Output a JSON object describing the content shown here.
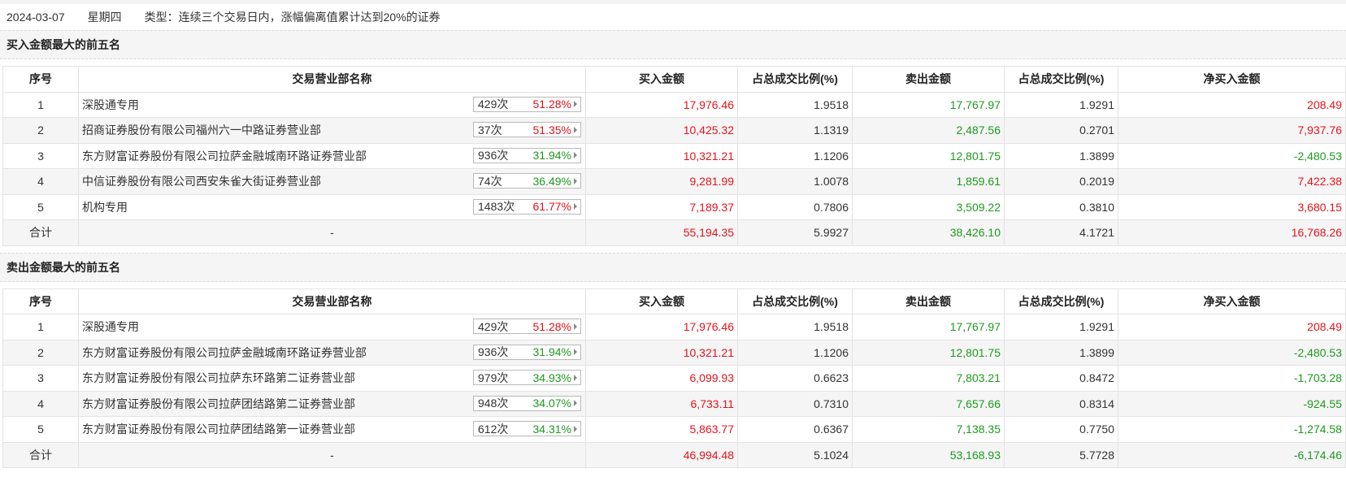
{
  "header": {
    "date": "2024-03-07",
    "weekday": "星期四",
    "type_text": "类型：连续三个交易日内，涨幅偏离值累计达到20%的证券"
  },
  "columns": [
    "序号",
    "交易营业部名称",
    "买入金额",
    "占总成交比例(%)",
    "卖出金额",
    "占总成交比例(%)",
    "净买入金额"
  ],
  "buy_section": {
    "title": "买入金额最大的前五名",
    "rows": [
      {
        "idx": "1",
        "name": "深股通专用",
        "count": "429次",
        "rate": "51.28%",
        "buy": "17,976.46",
        "buy_pct": "1.9518",
        "sell": "17,767.97",
        "sell_pct": "1.9291",
        "net": "208.49"
      },
      {
        "idx": "2",
        "name": "招商证券股份有限公司福州六一中路证券营业部",
        "count": "37次",
        "rate": "51.35%",
        "buy": "10,425.32",
        "buy_pct": "1.1319",
        "sell": "2,487.56",
        "sell_pct": "0.2701",
        "net": "7,937.76"
      },
      {
        "idx": "3",
        "name": "东方财富证券股份有限公司拉萨金融城南环路证券营业部",
        "count": "936次",
        "rate": "31.94%",
        "buy": "10,321.21",
        "buy_pct": "1.1206",
        "sell": "12,801.75",
        "sell_pct": "1.3899",
        "net": "-2,480.53"
      },
      {
        "idx": "4",
        "name": "中信证券股份有限公司西安朱雀大街证券营业部",
        "count": "74次",
        "rate": "36.49%",
        "buy": "9,281.99",
        "buy_pct": "1.0078",
        "sell": "1,859.61",
        "sell_pct": "0.2019",
        "net": "7,422.38"
      },
      {
        "idx": "5",
        "name": "机构专用",
        "count": "1483次",
        "rate": "61.77%",
        "buy": "7,189.37",
        "buy_pct": "0.7806",
        "sell": "3,509.22",
        "sell_pct": "0.3810",
        "net": "3,680.15"
      }
    ],
    "total": {
      "label": "合计",
      "name": "-",
      "buy": "55,194.35",
      "buy_pct": "5.9927",
      "sell": "38,426.10",
      "sell_pct": "4.1721",
      "net": "16,768.26"
    }
  },
  "sell_section": {
    "title": "卖出金额最大的前五名",
    "rows": [
      {
        "idx": "1",
        "name": "深股通专用",
        "count": "429次",
        "rate": "51.28%",
        "buy": "17,976.46",
        "buy_pct": "1.9518",
        "sell": "17,767.97",
        "sell_pct": "1.9291",
        "net": "208.49"
      },
      {
        "idx": "2",
        "name": "东方财富证券股份有限公司拉萨金融城南环路证券营业部",
        "count": "936次",
        "rate": "31.94%",
        "buy": "10,321.21",
        "buy_pct": "1.1206",
        "sell": "12,801.75",
        "sell_pct": "1.3899",
        "net": "-2,480.53"
      },
      {
        "idx": "3",
        "name": "东方财富证券股份有限公司拉萨东环路第二证券营业部",
        "count": "979次",
        "rate": "34.93%",
        "buy": "6,099.93",
        "buy_pct": "0.6623",
        "sell": "7,803.21",
        "sell_pct": "0.8472",
        "net": "-1,703.28"
      },
      {
        "idx": "4",
        "name": "东方财富证券股份有限公司拉萨团结路第二证券营业部",
        "count": "948次",
        "rate": "34.07%",
        "buy": "6,733.11",
        "buy_pct": "0.7310",
        "sell": "7,657.66",
        "sell_pct": "0.8314",
        "net": "-924.55"
      },
      {
        "idx": "5",
        "name": "东方财富证券股份有限公司拉萨团结路第一证券营业部",
        "count": "612次",
        "rate": "34.31%",
        "buy": "5,863.77",
        "buy_pct": "0.6367",
        "sell": "7,138.35",
        "sell_pct": "0.7750",
        "net": "-1,274.58"
      }
    ],
    "total": {
      "label": "合计",
      "name": "-",
      "buy": "46,994.48",
      "buy_pct": "5.1024",
      "sell": "53,168.93",
      "sell_pct": "5.7728",
      "net": "-6,174.46"
    }
  },
  "colors": {
    "positive": "#e4131b",
    "negative": "#1e9a1e"
  },
  "icons": {
    "row_expand": "triangle-right-icon"
  }
}
